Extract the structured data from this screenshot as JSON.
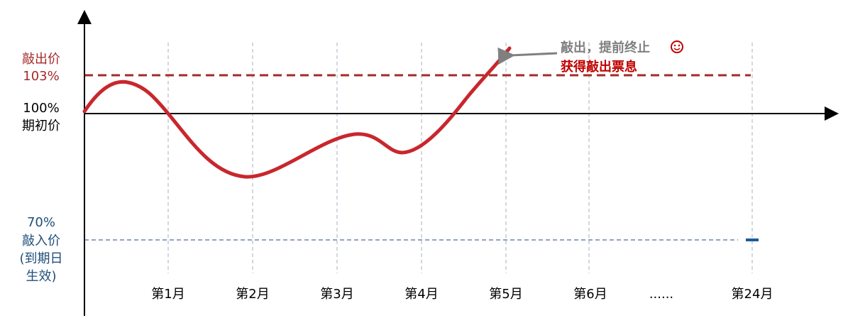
{
  "levels": {
    "knock_out": {
      "name": "敲出价",
      "value": "103%"
    },
    "initial": {
      "value": "100%",
      "name": "期初价"
    },
    "knock_in": {
      "value": "70%",
      "name": "敲入价",
      "note": [
        "(到期日",
        "生效)"
      ]
    }
  },
  "annotation": {
    "line1": "敲出，提前终止",
    "line2": "获得敲出票息"
  },
  "months": [
    "第1月",
    "第2月",
    "第3月",
    "第4月",
    "第5月",
    "第6月",
    "......",
    "第24月"
  ]
}
